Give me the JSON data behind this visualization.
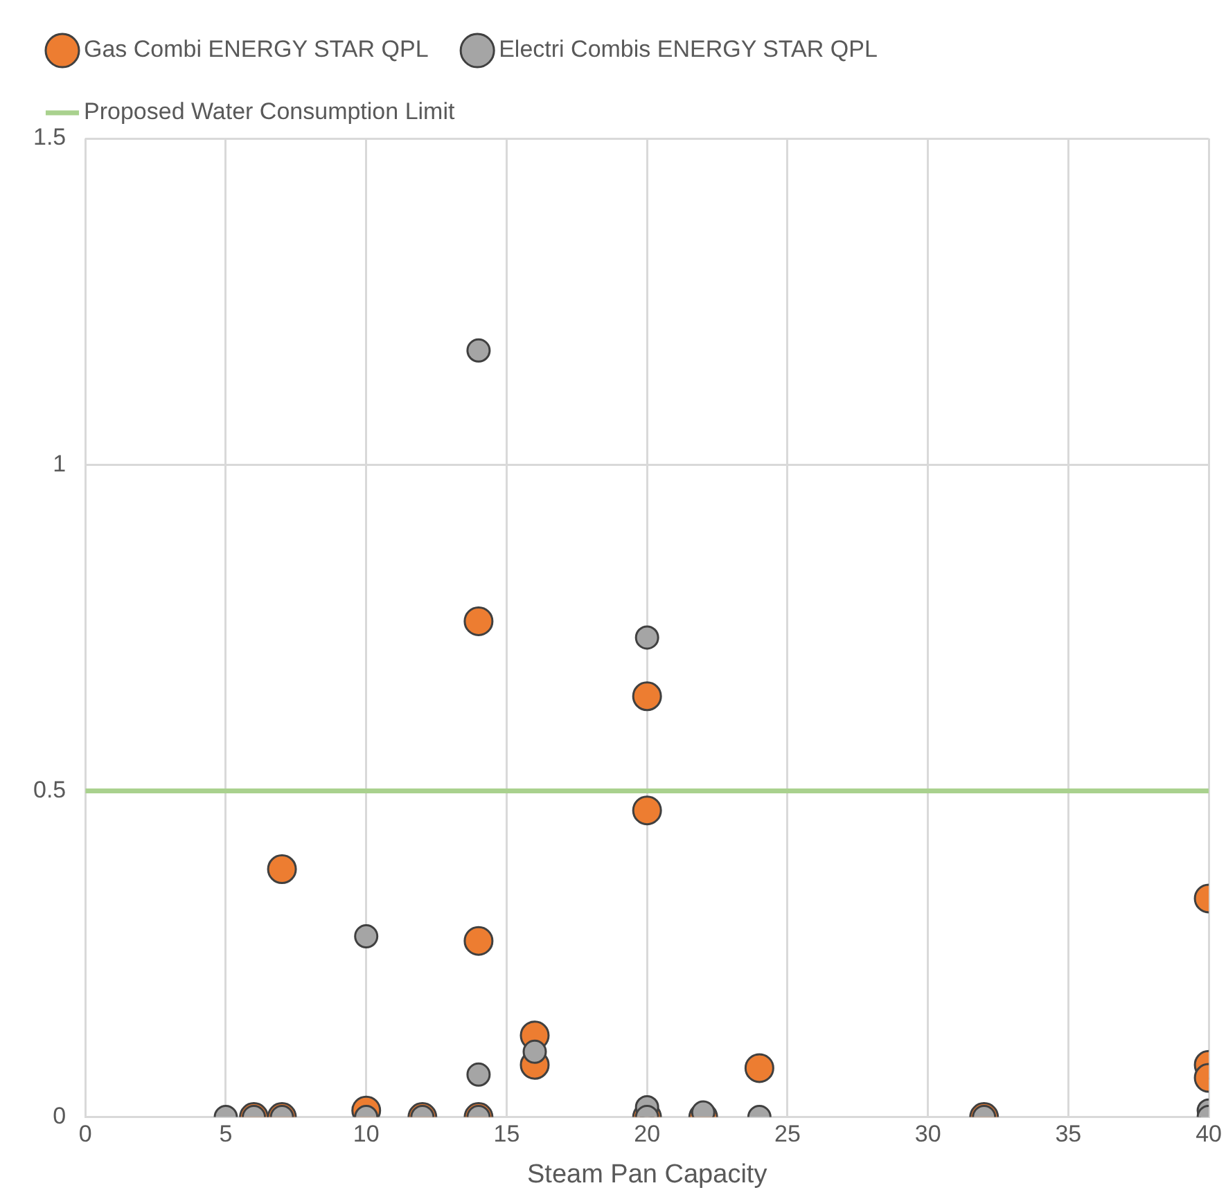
{
  "chart_data": {
    "type": "scatter",
    "xlabel": "Steam Pan Capacity",
    "xlim": [
      0,
      40
    ],
    "xticks": [
      0,
      5,
      10,
      15,
      20,
      25,
      30,
      35,
      40
    ],
    "ylim": [
      0,
      1.5
    ],
    "yticks": [
      0,
      0.5,
      1,
      1.5
    ],
    "grid": true,
    "legend": "top",
    "marker": "circle",
    "series": [
      {
        "name": "Gas Combi ENERGY STAR QPL",
        "color": "#ed7d31",
        "x": [
          7,
          14,
          20,
          20,
          14,
          16,
          16,
          24,
          40,
          40,
          40,
          6,
          7,
          10,
          12,
          14,
          20,
          22,
          32
        ],
        "values": [
          0.38,
          0.76,
          0.645,
          0.47,
          0.27,
          0.125,
          0.08,
          0.075,
          0.335,
          0.08,
          0.06,
          0,
          0,
          0.01,
          0,
          0,
          0,
          0,
          0
        ]
      },
      {
        "name": "Electri Combis ENERGY STAR QPL",
        "color": "#a5a5a5",
        "x": [
          14,
          20,
          10,
          14,
          16,
          20,
          22,
          40,
          5,
          6,
          7,
          10,
          12,
          14,
          20,
          24,
          32,
          40
        ],
        "values": [
          1.175,
          0.735,
          0.277,
          0.065,
          0.1,
          0.015,
          0.007,
          0.01,
          0,
          0,
          0,
          0,
          0,
          0,
          0,
          0,
          0,
          0
        ]
      }
    ],
    "ref_lines": [
      {
        "axis": "y",
        "value": 0.5,
        "label": "Proposed Water Consumption Limit",
        "color": "#a9d18e"
      }
    ]
  }
}
